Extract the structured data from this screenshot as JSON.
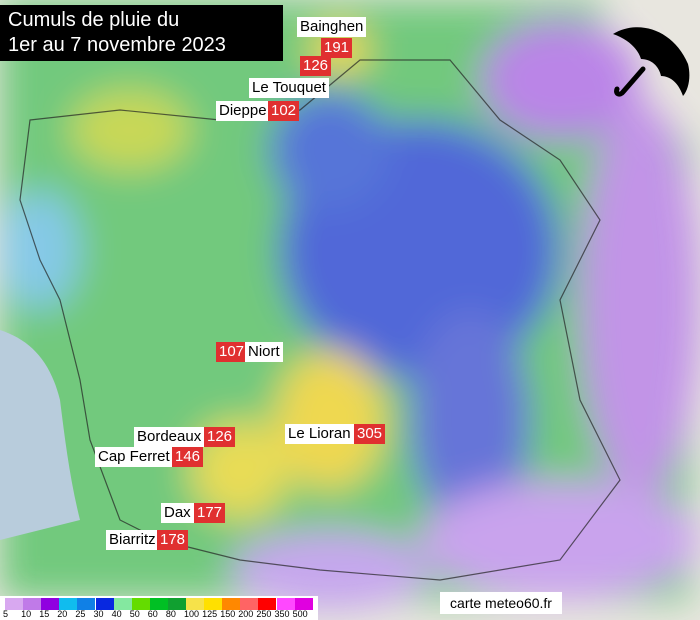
{
  "title": {
    "line1": "Cumuls de pluie du",
    "line2": "1er au 7 novembre 2023"
  },
  "stations": [
    {
      "name": "Bainghen",
      "value": "191"
    },
    {
      "name": "Le Touquet",
      "value": "126"
    },
    {
      "name": "Dieppe",
      "value": "102"
    },
    {
      "name": "Niort",
      "value": "107"
    },
    {
      "name": "Bordeaux",
      "value": "126"
    },
    {
      "name": "Le Lioran",
      "value": "305"
    },
    {
      "name": "Cap Ferret",
      "value": "146"
    },
    {
      "name": "Dax",
      "value": "177"
    },
    {
      "name": "Biarritz",
      "value": "178"
    }
  ],
  "legend": {
    "labels": [
      "5",
      "10",
      "15",
      "20",
      "25",
      "30",
      "40",
      "50",
      "60",
      "80",
      "100",
      "125",
      "150",
      "200",
      "250",
      "350",
      "500"
    ],
    "colors": [
      "#d8a8f0",
      "#c07ae8",
      "#9000e0",
      "#10bcee",
      "#1080e6",
      "#0828e0",
      "#84e8a0",
      "#64dc00",
      "#00c024",
      "#10a030",
      "#f6e24a",
      "#ffe000",
      "#ff8800",
      "#ff6464",
      "#ff0000",
      "#ff48ff",
      "#e000e0"
    ]
  },
  "credit": "carte meteo60.fr",
  "icons": {
    "umbrella": "umbrella-icon"
  }
}
